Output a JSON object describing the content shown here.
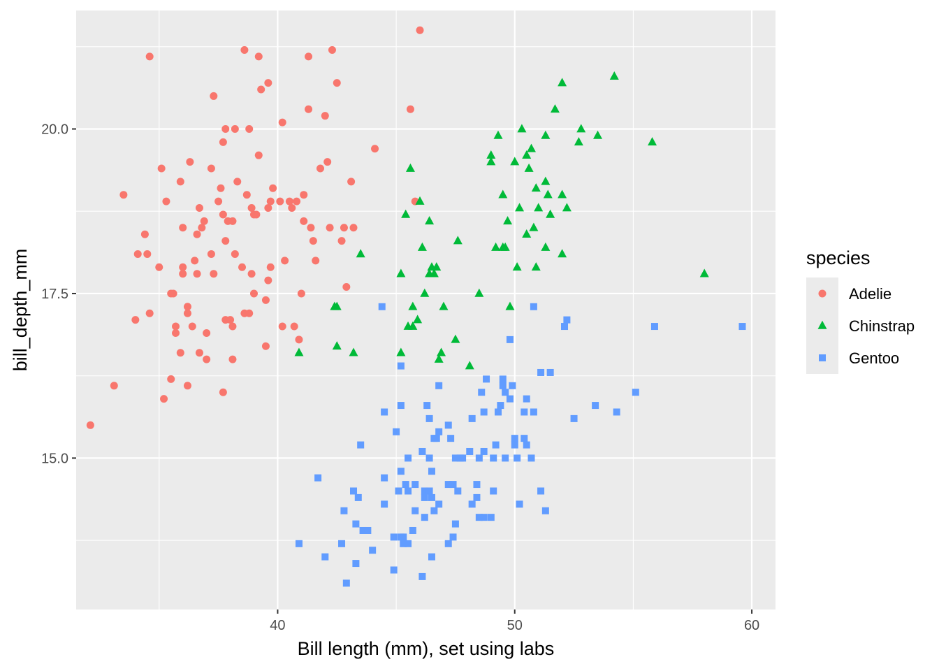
{
  "chart_data": {
    "type": "scatter",
    "title": "",
    "xlabel": "Bill length (mm), set using labs",
    "ylabel": "bill_depth_mm",
    "xlim": [
      31.5,
      61
    ],
    "ylim": [
      12.7,
      21.8
    ],
    "x_ticks": [
      40,
      50,
      60
    ],
    "x_tick_labels": [
      "40",
      "50",
      "60"
    ],
    "y_ticks": [
      15.0,
      17.5,
      20.0
    ],
    "y_tick_labels": [
      "15.0",
      "17.5",
      "20.0"
    ],
    "grid": true,
    "panel_background": "#ebebeb",
    "legend": {
      "title": "species",
      "position": "right",
      "entries": [
        {
          "label": "Adelie",
          "shape": "circle",
          "color": "#f8766d"
        },
        {
          "label": "Chinstrap",
          "shape": "triangle",
          "color": "#00ba38"
        },
        {
          "label": "Gentoo",
          "shape": "square",
          "color": "#619cff"
        }
      ]
    },
    "series": [
      {
        "name": "Adelie",
        "color": "#f8766d",
        "shape": "circle",
        "points": [
          [
            32.1,
            15.5
          ],
          [
            33.1,
            16.1
          ],
          [
            33.5,
            19.0
          ],
          [
            34.0,
            17.1
          ],
          [
            34.1,
            18.1
          ],
          [
            34.4,
            18.4
          ],
          [
            34.5,
            18.1
          ],
          [
            34.6,
            21.1
          ],
          [
            34.6,
            17.2
          ],
          [
            35.0,
            17.9
          ],
          [
            35.1,
            19.4
          ],
          [
            35.2,
            15.9
          ],
          [
            35.3,
            18.9
          ],
          [
            35.5,
            16.2
          ],
          [
            35.5,
            17.5
          ],
          [
            35.6,
            17.5
          ],
          [
            35.7,
            16.9
          ],
          [
            35.7,
            17.0
          ],
          [
            35.9,
            19.2
          ],
          [
            35.9,
            16.6
          ],
          [
            36.0,
            17.9
          ],
          [
            36.0,
            17.8
          ],
          [
            36.0,
            18.5
          ],
          [
            36.2,
            16.1
          ],
          [
            36.2,
            17.3
          ],
          [
            36.2,
            17.2
          ],
          [
            36.3,
            19.5
          ],
          [
            36.4,
            17.0
          ],
          [
            36.5,
            18.0
          ],
          [
            36.6,
            17.8
          ],
          [
            36.6,
            18.4
          ],
          [
            36.7,
            18.8
          ],
          [
            36.7,
            16.6
          ],
          [
            36.8,
            18.5
          ],
          [
            36.9,
            18.6
          ],
          [
            37.0,
            16.9
          ],
          [
            37.0,
            16.5
          ],
          [
            37.2,
            18.1
          ],
          [
            37.2,
            19.4
          ],
          [
            37.3,
            17.8
          ],
          [
            37.3,
            20.5
          ],
          [
            37.5,
            18.9
          ],
          [
            37.6,
            19.1
          ],
          [
            37.7,
            18.7
          ],
          [
            37.7,
            19.8
          ],
          [
            37.7,
            16.0
          ],
          [
            37.8,
            18.3
          ],
          [
            37.8,
            17.1
          ],
          [
            37.8,
            20.0
          ],
          [
            37.9,
            18.6
          ],
          [
            38.0,
            17.1
          ],
          [
            38.1,
            18.6
          ],
          [
            38.1,
            16.5
          ],
          [
            38.1,
            17.0
          ],
          [
            38.2,
            18.1
          ],
          [
            38.2,
            20.0
          ],
          [
            38.3,
            19.2
          ],
          [
            38.5,
            17.9
          ],
          [
            38.6,
            21.2
          ],
          [
            38.6,
            17.2
          ],
          [
            38.7,
            19.0
          ],
          [
            38.8,
            17.2
          ],
          [
            38.8,
            20.0
          ],
          [
            38.9,
            17.8
          ],
          [
            38.9,
            18.8
          ],
          [
            39.0,
            17.5
          ],
          [
            39.0,
            18.7
          ],
          [
            39.1,
            18.7
          ],
          [
            39.2,
            19.6
          ],
          [
            39.2,
            21.1
          ],
          [
            39.3,
            20.6
          ],
          [
            39.5,
            17.4
          ],
          [
            39.5,
            16.7
          ],
          [
            39.6,
            18.8
          ],
          [
            39.6,
            17.7
          ],
          [
            39.6,
            20.7
          ],
          [
            39.7,
            18.9
          ],
          [
            39.7,
            17.9
          ],
          [
            39.8,
            19.1
          ],
          [
            40.1,
            18.9
          ],
          [
            40.2,
            17.0
          ],
          [
            40.2,
            20.1
          ],
          [
            40.3,
            18.0
          ],
          [
            40.5,
            18.9
          ],
          [
            40.6,
            18.8
          ],
          [
            40.7,
            17.0
          ],
          [
            40.8,
            18.9
          ],
          [
            40.9,
            16.8
          ],
          [
            41.0,
            17.5
          ],
          [
            41.1,
            19.0
          ],
          [
            41.1,
            18.6
          ],
          [
            41.3,
            21.1
          ],
          [
            41.3,
            20.3
          ],
          [
            41.4,
            18.5
          ],
          [
            41.5,
            18.3
          ],
          [
            41.6,
            18.0
          ],
          [
            41.8,
            19.4
          ],
          [
            42.0,
            20.2
          ],
          [
            42.1,
            19.5
          ],
          [
            42.2,
            18.5
          ],
          [
            42.3,
            21.2
          ],
          [
            42.5,
            20.7
          ],
          [
            42.7,
            18.3
          ],
          [
            42.8,
            18.5
          ],
          [
            42.9,
            17.6
          ],
          [
            43.1,
            19.2
          ],
          [
            43.2,
            18.5
          ],
          [
            44.1,
            19.7
          ],
          [
            45.6,
            20.3
          ],
          [
            45.8,
            18.9
          ],
          [
            46.0,
            21.5
          ]
        ]
      },
      {
        "name": "Chinstrap",
        "color": "#00ba38",
        "shape": "triangle",
        "points": [
          [
            40.9,
            16.6
          ],
          [
            42.4,
            17.3
          ],
          [
            42.5,
            16.7
          ],
          [
            42.5,
            17.3
          ],
          [
            43.2,
            16.6
          ],
          [
            43.5,
            18.1
          ],
          [
            45.2,
            17.8
          ],
          [
            45.2,
            16.6
          ],
          [
            45.4,
            18.7
          ],
          [
            45.5,
            17.0
          ],
          [
            45.6,
            19.4
          ],
          [
            45.7,
            17.3
          ],
          [
            45.7,
            17.0
          ],
          [
            45.9,
            17.1
          ],
          [
            46.0,
            18.9
          ],
          [
            46.1,
            18.2
          ],
          [
            46.2,
            17.5
          ],
          [
            46.4,
            18.6
          ],
          [
            46.4,
            17.8
          ],
          [
            46.5,
            17.9
          ],
          [
            46.6,
            17.8
          ],
          [
            46.7,
            17.9
          ],
          [
            46.8,
            16.5
          ],
          [
            46.9,
            16.6
          ],
          [
            47.0,
            17.3
          ],
          [
            47.5,
            16.8
          ],
          [
            47.6,
            18.3
          ],
          [
            48.1,
            16.4
          ],
          [
            48.5,
            17.5
          ],
          [
            49.0,
            19.5
          ],
          [
            49.0,
            19.6
          ],
          [
            49.2,
            18.2
          ],
          [
            49.3,
            19.9
          ],
          [
            49.5,
            19.0
          ],
          [
            49.5,
            18.2
          ],
          [
            49.6,
            18.2
          ],
          [
            49.7,
            18.6
          ],
          [
            49.8,
            17.3
          ],
          [
            50.0,
            19.5
          ],
          [
            50.1,
            17.9
          ],
          [
            50.2,
            18.8
          ],
          [
            50.3,
            20.0
          ],
          [
            50.5,
            18.4
          ],
          [
            50.5,
            19.6
          ],
          [
            50.6,
            19.4
          ],
          [
            50.7,
            19.7
          ],
          [
            50.8,
            18.5
          ],
          [
            50.9,
            17.9
          ],
          [
            50.9,
            19.1
          ],
          [
            51.0,
            18.8
          ],
          [
            51.3,
            18.2
          ],
          [
            51.3,
            19.2
          ],
          [
            51.3,
            19.9
          ],
          [
            51.4,
            19.0
          ],
          [
            51.5,
            18.7
          ],
          [
            51.7,
            20.3
          ],
          [
            52.0,
            18.1
          ],
          [
            52.0,
            19.0
          ],
          [
            52.0,
            20.7
          ],
          [
            52.2,
            18.8
          ],
          [
            52.7,
            19.8
          ],
          [
            52.8,
            20.0
          ],
          [
            53.5,
            19.9
          ],
          [
            54.2,
            20.8
          ],
          [
            55.8,
            19.8
          ],
          [
            58.0,
            17.8
          ]
        ]
      },
      {
        "name": "Gentoo",
        "color": "#619cff",
        "shape": "square",
        "points": [
          [
            40.9,
            13.7
          ],
          [
            41.7,
            14.7
          ],
          [
            42.0,
            13.5
          ],
          [
            42.7,
            13.7
          ],
          [
            42.8,
            14.2
          ],
          [
            42.9,
            13.1
          ],
          [
            43.2,
            14.5
          ],
          [
            43.3,
            13.4
          ],
          [
            43.3,
            14.0
          ],
          [
            43.4,
            14.4
          ],
          [
            43.5,
            15.2
          ],
          [
            43.6,
            13.9
          ],
          [
            43.8,
            13.9
          ],
          [
            44.0,
            13.6
          ],
          [
            44.4,
            17.3
          ],
          [
            44.5,
            14.3
          ],
          [
            44.5,
            14.7
          ],
          [
            44.5,
            15.7
          ],
          [
            44.9,
            13.8
          ],
          [
            44.9,
            13.3
          ],
          [
            45.0,
            15.4
          ],
          [
            45.1,
            14.5
          ],
          [
            45.2,
            13.8
          ],
          [
            45.2,
            14.8
          ],
          [
            45.2,
            15.8
          ],
          [
            45.2,
            16.4
          ],
          [
            45.3,
            13.7
          ],
          [
            45.3,
            13.8
          ],
          [
            45.4,
            14.6
          ],
          [
            45.5,
            13.7
          ],
          [
            45.5,
            14.5
          ],
          [
            45.5,
            15.0
          ],
          [
            45.7,
            13.9
          ],
          [
            45.8,
            14.2
          ],
          [
            45.8,
            14.6
          ],
          [
            46.1,
            13.2
          ],
          [
            46.1,
            15.1
          ],
          [
            46.2,
            14.1
          ],
          [
            46.2,
            14.4
          ],
          [
            46.2,
            14.5
          ],
          [
            46.3,
            15.8
          ],
          [
            46.4,
            14.5
          ],
          [
            46.4,
            15.0
          ],
          [
            46.4,
            15.6
          ],
          [
            46.5,
            13.5
          ],
          [
            46.5,
            14.4
          ],
          [
            46.5,
            14.8
          ],
          [
            46.6,
            14.2
          ],
          [
            46.6,
            15.3
          ],
          [
            46.7,
            15.3
          ],
          [
            46.8,
            14.3
          ],
          [
            46.8,
            15.4
          ],
          [
            46.8,
            16.1
          ],
          [
            47.2,
            13.7
          ],
          [
            47.2,
            14.6
          ],
          [
            47.2,
            15.5
          ],
          [
            47.3,
            15.3
          ],
          [
            47.4,
            14.6
          ],
          [
            47.4,
            13.8
          ],
          [
            47.5,
            14.0
          ],
          [
            47.5,
            15.0
          ],
          [
            47.6,
            14.5
          ],
          [
            47.7,
            15.0
          ],
          [
            47.8,
            15.0
          ],
          [
            48.1,
            15.1
          ],
          [
            48.2,
            14.3
          ],
          [
            48.2,
            15.6
          ],
          [
            48.4,
            14.4
          ],
          [
            48.4,
            14.6
          ],
          [
            48.5,
            14.1
          ],
          [
            48.5,
            15.0
          ],
          [
            48.6,
            16.0
          ],
          [
            48.7,
            14.1
          ],
          [
            48.7,
            15.1
          ],
          [
            48.7,
            15.7
          ],
          [
            48.8,
            16.2
          ],
          [
            49.0,
            14.1
          ],
          [
            49.1,
            14.5
          ],
          [
            49.1,
            15.0
          ],
          [
            49.2,
            15.2
          ],
          [
            49.3,
            15.7
          ],
          [
            49.4,
            15.8
          ],
          [
            49.5,
            16.1
          ],
          [
            49.5,
            16.2
          ],
          [
            49.6,
            15.0
          ],
          [
            49.6,
            16.0
          ],
          [
            49.8,
            15.9
          ],
          [
            49.8,
            16.8
          ],
          [
            49.9,
            16.1
          ],
          [
            50.0,
            15.2
          ],
          [
            50.0,
            15.3
          ],
          [
            50.1,
            15.0
          ],
          [
            50.2,
            14.3
          ],
          [
            50.4,
            15.3
          ],
          [
            50.4,
            15.7
          ],
          [
            50.5,
            15.2
          ],
          [
            50.5,
            15.9
          ],
          [
            50.7,
            15.0
          ],
          [
            50.8,
            15.7
          ],
          [
            50.8,
            17.3
          ],
          [
            51.1,
            14.5
          ],
          [
            51.1,
            16.3
          ],
          [
            51.3,
            14.2
          ],
          [
            51.5,
            16.3
          ],
          [
            52.1,
            17.0
          ],
          [
            52.2,
            17.1
          ],
          [
            52.5,
            15.6
          ],
          [
            53.4,
            15.8
          ],
          [
            54.3,
            15.7
          ],
          [
            55.1,
            16.0
          ],
          [
            55.9,
            17.0
          ],
          [
            59.6,
            17.0
          ]
        ]
      }
    ]
  }
}
